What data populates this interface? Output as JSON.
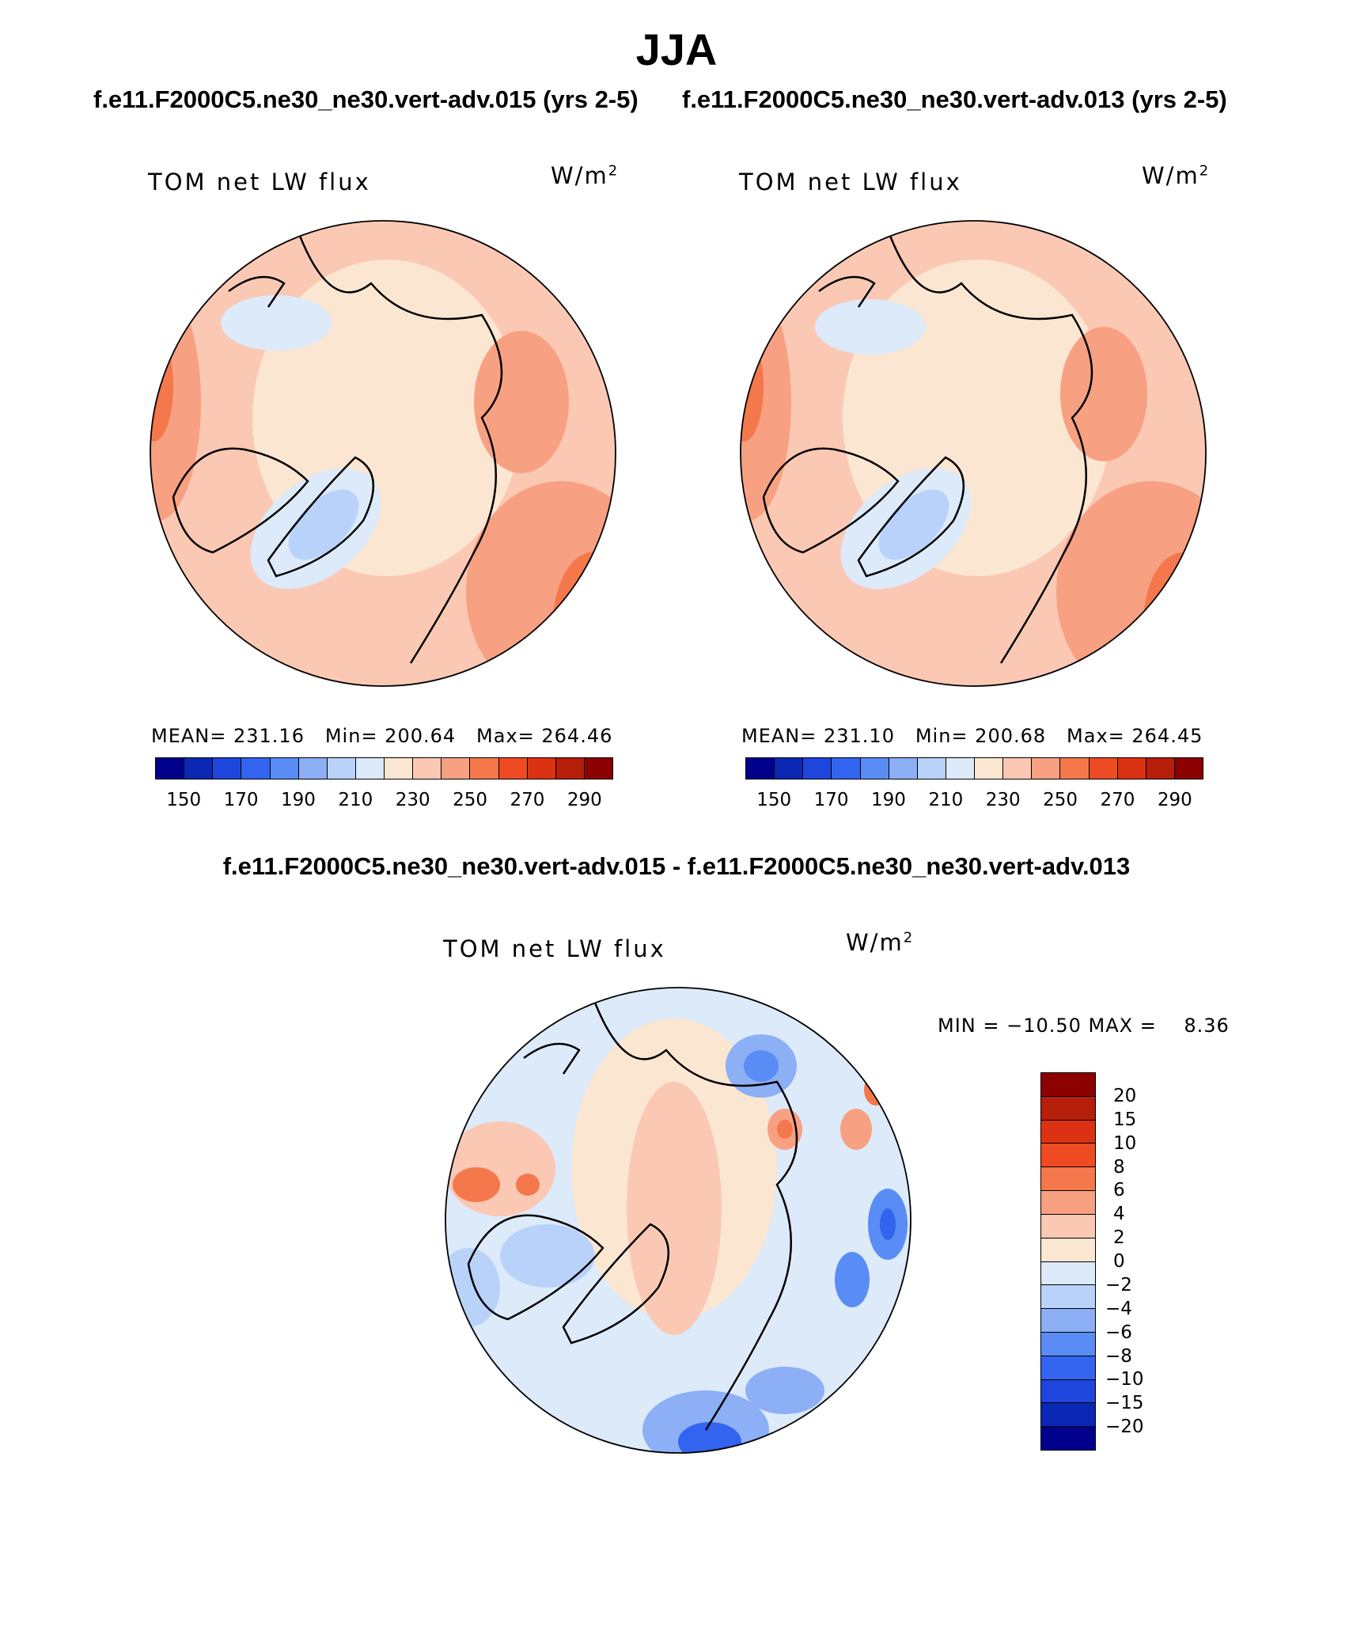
{
  "figure": {
    "title": "JJA",
    "panels": [
      {
        "heading": "f.e11.F2000C5.ne30_ne30.vert-adv.015 (yrs 2-5)",
        "variable": "TOM net LW flux",
        "units_base": "W/m",
        "units_exp": "2",
        "stats": "MEAN= 231.16   Min= 200.64   Max= 264.46"
      },
      {
        "heading": "f.e11.F2000C5.ne30_ne30.vert-adv.013 (yrs 2-5)",
        "variable": "TOM net LW flux",
        "units_base": "W/m",
        "units_exp": "2",
        "stats": "MEAN= 231.10   Min= 200.68   Max= 264.45"
      }
    ],
    "difference": {
      "heading": "f.e11.F2000C5.ne30_ne30.vert-adv.015 - f.e11.F2000C5.ne30_ne30.vert-adv.013",
      "variable": "TOM net LW flux",
      "units_base": "W/m",
      "units_exp": "2",
      "stats": "MIN = −10.50 MAX =    8.36"
    }
  },
  "colorbar_main": {
    "labels": [
      "150",
      "170",
      "190",
      "210",
      "230",
      "250",
      "270",
      "290"
    ],
    "colors": [
      "#00008c",
      "#0a28b4",
      "#1e46dc",
      "#3264f0",
      "#5a8cf5",
      "#8caff5",
      "#b9d2fa",
      "#dceafa",
      "#fbe6d2",
      "#fbc8b4",
      "#f8a082",
      "#f4784b",
      "#ef4b23",
      "#dc3214",
      "#b41e0a",
      "#8c0000"
    ]
  },
  "colorbar_diff": {
    "labels": [
      "20",
      "15",
      "10",
      "8",
      "6",
      "4",
      "2",
      "0",
      "−2",
      "−4",
      "−6",
      "−8",
      "−10",
      "−15",
      "−20"
    ],
    "colors": [
      "#8c0000",
      "#b41e0a",
      "#dc3214",
      "#ef4b23",
      "#f4784b",
      "#f8a082",
      "#fbc8b4",
      "#fbe6d2",
      "#dceafa",
      "#b9d2fa",
      "#8caff5",
      "#5a8cf5",
      "#3264f0",
      "#1e46dc",
      "#0a28b4",
      "#00008c"
    ]
  }
}
